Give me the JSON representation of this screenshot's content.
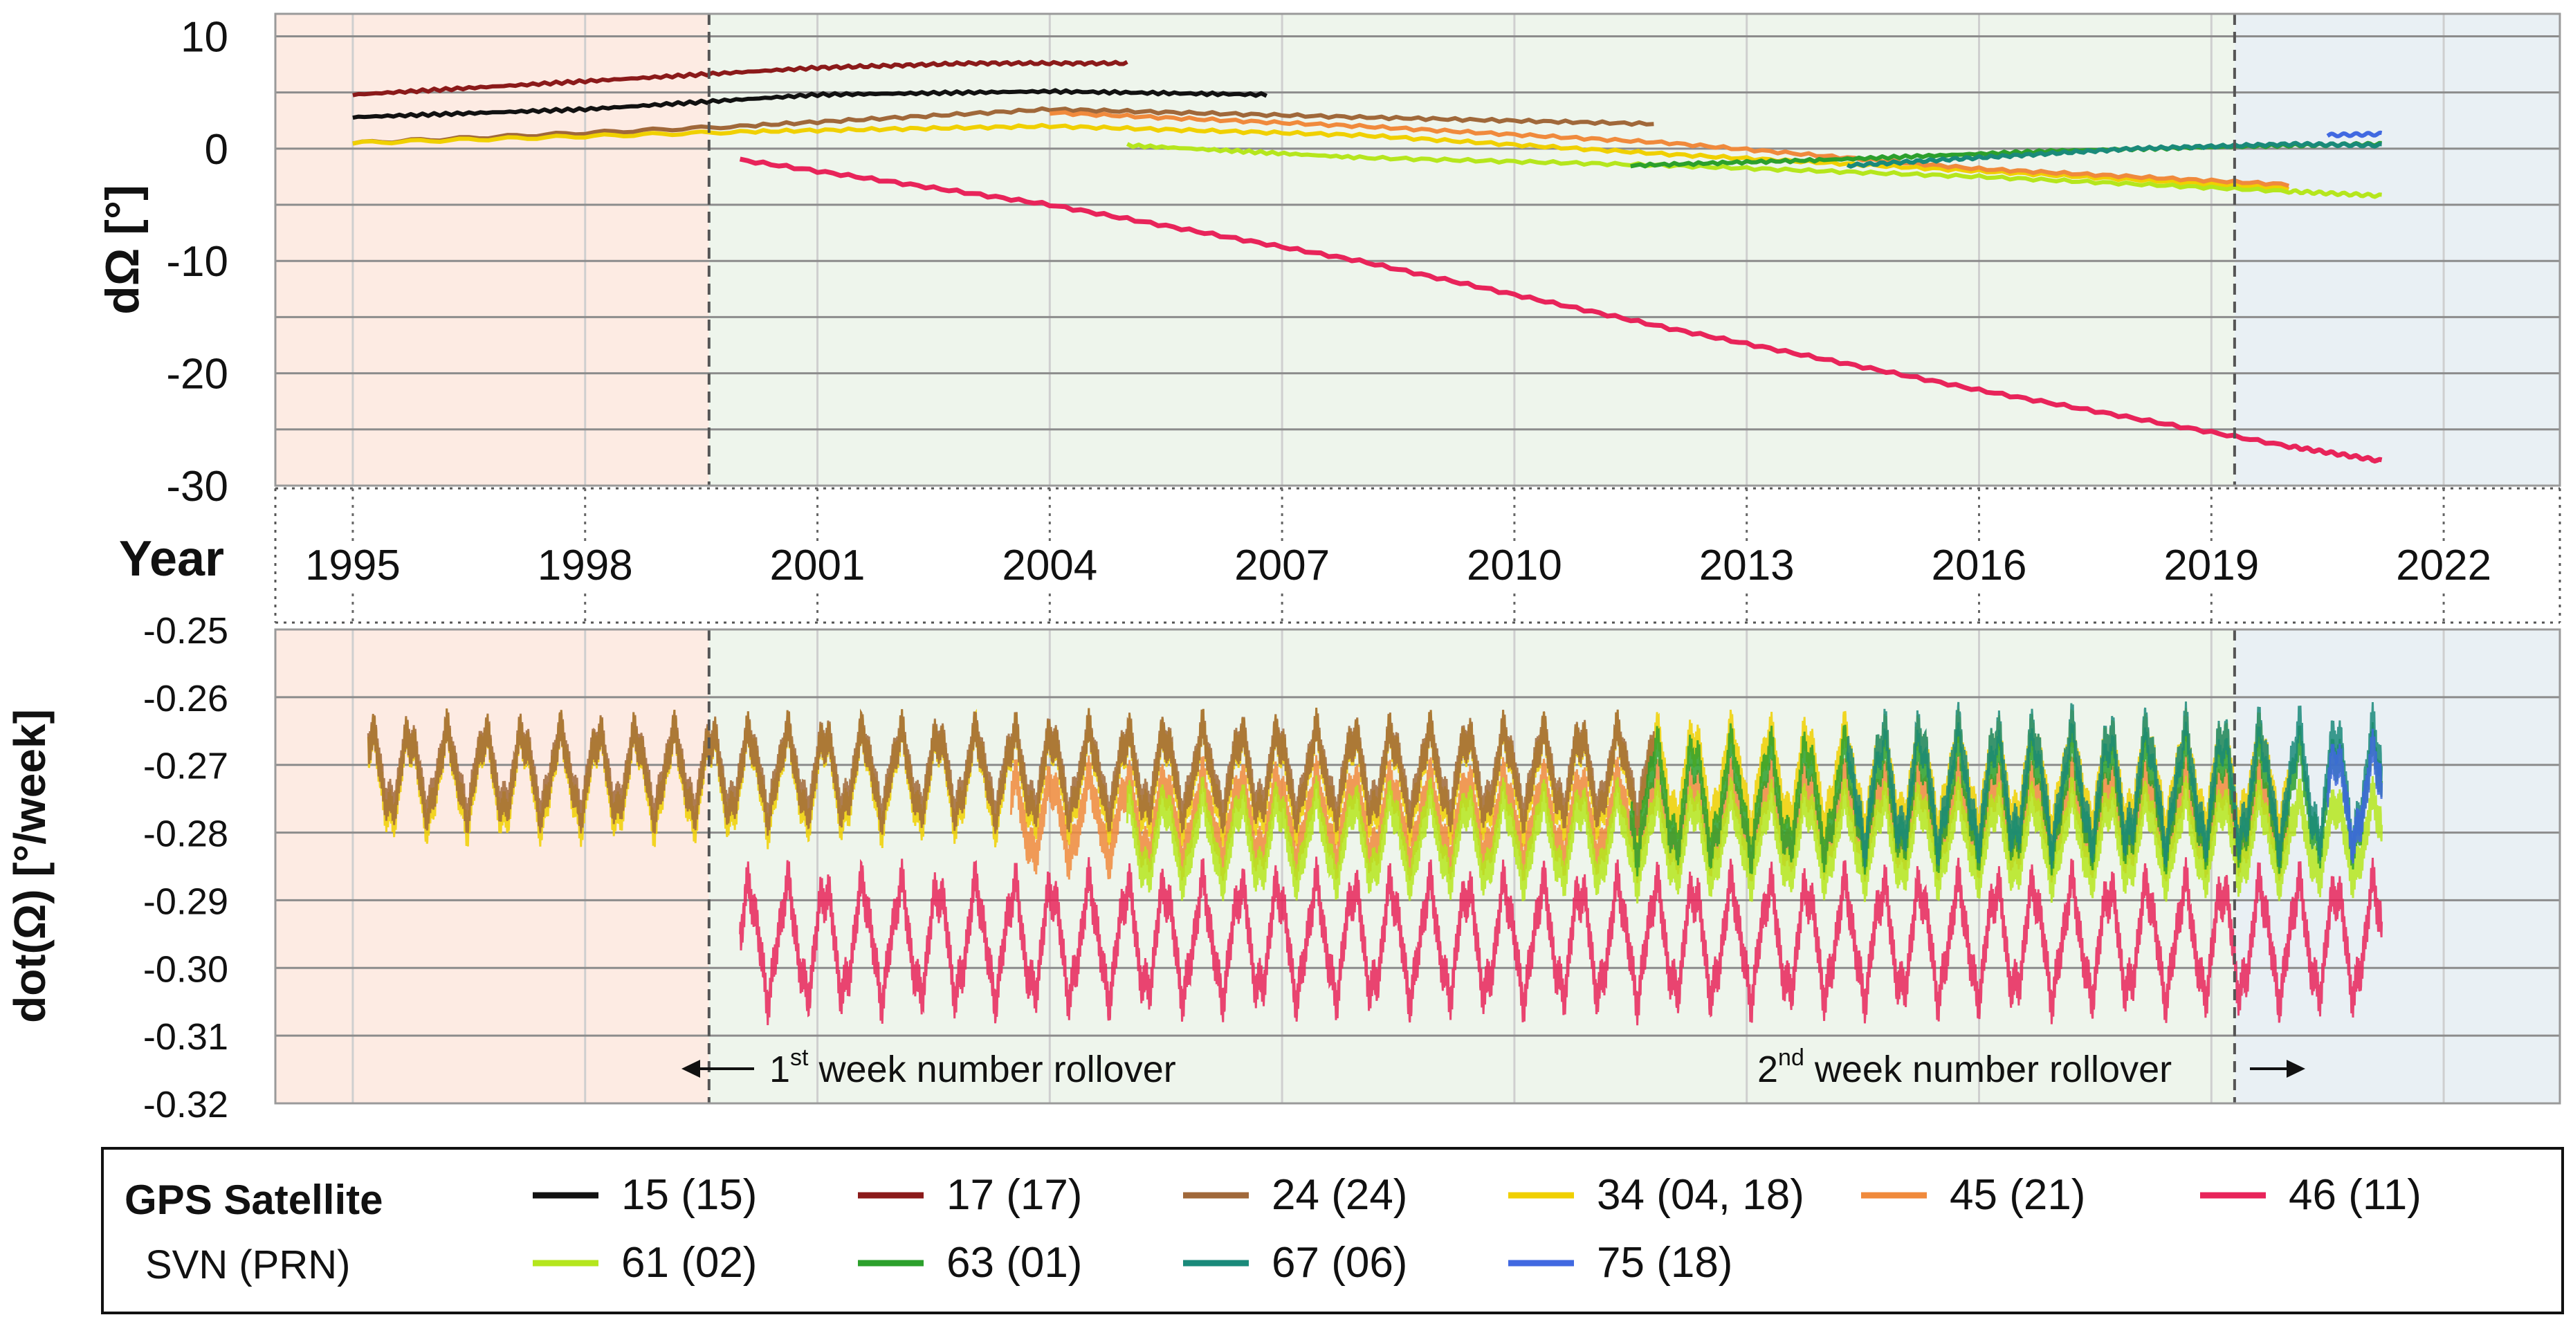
{
  "chart_data": [
    {
      "type": "line",
      "panel": "top",
      "ylabel": "dΩ [°]",
      "ylim": [
        -30,
        12
      ],
      "yticks": [
        10,
        0,
        -10,
        -20,
        -30
      ],
      "x_range": [
        1994.0,
        2023.5
      ],
      "series": [
        {
          "name": "15 (15)",
          "color": "#111111",
          "x": [
            1995.0,
            1998.0,
            2001.0,
            2004.0,
            2006.8
          ],
          "y": [
            2.8,
            3.5,
            4.8,
            5.1,
            4.8
          ]
        },
        {
          "name": "17 (17)",
          "color": "#8b1a1a",
          "x": [
            1995.0,
            1998.0,
            2001.0,
            2003.0,
            2005.0
          ],
          "y": [
            4.8,
            6.0,
            7.2,
            7.6,
            7.6
          ]
        },
        {
          "name": "24 (24)",
          "color": "#a0683a",
          "x": [
            1995.0,
            2000.0,
            2004.0,
            2008.0,
            2011.8
          ],
          "y": [
            0.5,
            2.0,
            3.5,
            2.8,
            2.2
          ]
        },
        {
          "name": "34 (04, 18)",
          "color": "#f0d000",
          "x": [
            1995.0,
            2000.0,
            2004.0,
            2008.0,
            2012.0,
            2016.0,
            2020.0
          ],
          "y": [
            0.5,
            1.5,
            2.0,
            1.2,
            -0.5,
            -2.0,
            -3.5
          ]
        },
        {
          "name": "45 (21)",
          "color": "#f08a3c",
          "x": [
            2004.0,
            2008.0,
            2012.0,
            2016.0,
            2020.0
          ],
          "y": [
            3.2,
            2.0,
            0.5,
            -1.8,
            -3.2
          ]
        },
        {
          "name": "46 (11)",
          "color": "#e8245a",
          "x": [
            2000.0,
            2004.0,
            2008.0,
            2012.0,
            2016.0,
            2020.0,
            2021.2
          ],
          "y": [
            -1.0,
            -5.0,
            -10.0,
            -16.0,
            -21.5,
            -26.5,
            -27.8
          ]
        },
        {
          "name": "61 (02)",
          "color": "#b5e61d",
          "x": [
            2005.0,
            2008.0,
            2012.0,
            2016.0,
            2020.0,
            2021.2
          ],
          "y": [
            0.3,
            -0.8,
            -1.5,
            -2.5,
            -3.8,
            -4.2
          ]
        },
        {
          "name": "63 (01)",
          "color": "#2ca02c",
          "x": [
            2011.5,
            2014.0,
            2017.0,
            2020.0,
            2021.2
          ],
          "y": [
            -1.5,
            -1.0,
            -0.2,
            0.3,
            0.4
          ]
        },
        {
          "name": "67 (06)",
          "color": "#1a8a7a",
          "x": [
            2014.3,
            2016.0,
            2018.0,
            2020.0,
            2021.2
          ],
          "y": [
            -1.5,
            -0.8,
            0.0,
            0.4,
            0.3
          ]
        },
        {
          "name": "75 (18)",
          "color": "#4169e1",
          "x": [
            2020.5,
            2021.2
          ],
          "y": [
            1.2,
            1.3
          ]
        }
      ]
    },
    {
      "type": "line",
      "panel": "bottom",
      "ylabel": "dot(Ω) [°/week]",
      "ylim": [
        -0.32,
        -0.25
      ],
      "yticks": [
        -0.25,
        -0.26,
        -0.27,
        -0.28,
        -0.29,
        -0.3,
        -0.31,
        -0.32
      ],
      "x_range": [
        1994.0,
        2023.5
      ],
      "series": [
        {
          "name": "34 (04, 18)",
          "color": "#f0d000",
          "x": [
            1995.2,
            2020.0
          ],
          "mean": -0.272,
          "amplitude": 0.008
        },
        {
          "name": "24 (24)",
          "color": "#a0683a",
          "x": [
            1995.2,
            2011.8
          ],
          "mean": -0.271,
          "amplitude": 0.007
        },
        {
          "name": "45 (21)",
          "color": "#f08a3c",
          "x": [
            2003.5,
            2020.0
          ],
          "mean": -0.278,
          "amplitude": 0.007
        },
        {
          "name": "61 (02)",
          "color": "#b5e61d",
          "x": [
            2005.0,
            2021.2
          ],
          "mean": -0.281,
          "amplitude": 0.007
        },
        {
          "name": "63 (01)",
          "color": "#2ca02c",
          "x": [
            2011.5,
            2021.2
          ],
          "mean": -0.275,
          "amplitude": 0.009
        },
        {
          "name": "67 (06)",
          "color": "#1a8a7a",
          "x": [
            2014.3,
            2021.2
          ],
          "mean": -0.273,
          "amplitude": 0.01
        },
        {
          "name": "75 (18)",
          "color": "#4169e1",
          "x": [
            2020.5,
            2021.2
          ],
          "mean": -0.275,
          "amplitude": 0.008
        },
        {
          "name": "46 (11)",
          "color": "#e8245a",
          "x": [
            2000.0,
            2021.2
          ],
          "mean": -0.296,
          "amplitude": 0.01
        }
      ]
    }
  ],
  "axis": {
    "year_label": "Year",
    "years": [
      "1995",
      "1998",
      "2001",
      "2004",
      "2007",
      "2010",
      "2013",
      "2016",
      "2019",
      "2022"
    ],
    "top_ytick_labels": [
      "10",
      "0",
      "-10",
      "-20",
      "-30"
    ],
    "bottom_ytick_labels": [
      "-0.25",
      "-0.26",
      "-0.27",
      "-0.28",
      "-0.29",
      "-0.30",
      "-0.31",
      "-0.32"
    ]
  },
  "eras": [
    {
      "name": "pre-rollover",
      "color": "#fdebe3"
    },
    {
      "name": "between-rollovers",
      "color": "#eef5ec"
    },
    {
      "name": "post-rollover",
      "color": "#e9f0f4"
    }
  ],
  "rollover_years": [
    1999.6,
    2019.3
  ],
  "annotations": {
    "first_rollover": {
      "ordinal": "1",
      "suffix": "st",
      "text": " week number rollover"
    },
    "second_rollover": {
      "ordinal": "2",
      "suffix": "nd",
      "text": " week number rollover"
    }
  },
  "legend": {
    "title": "GPS Satellite",
    "subtitle": "SVN (PRN)",
    "entries": [
      {
        "label": "15 (15)",
        "color": "#111111"
      },
      {
        "label": "17 (17)",
        "color": "#8b1a1a"
      },
      {
        "label": "24 (24)",
        "color": "#a0683a"
      },
      {
        "label": "34 (04, 18)",
        "color": "#f0d000"
      },
      {
        "label": "45 (21)",
        "color": "#f08a3c"
      },
      {
        "label": "46 (11)",
        "color": "#e8245a"
      },
      {
        "label": "61 (02)",
        "color": "#b5e61d"
      },
      {
        "label": "63 (01)",
        "color": "#2ca02c"
      },
      {
        "label": "67 (06)",
        "color": "#1a8a7a"
      },
      {
        "label": "75 (18)",
        "color": "#4169e1"
      }
    ]
  }
}
